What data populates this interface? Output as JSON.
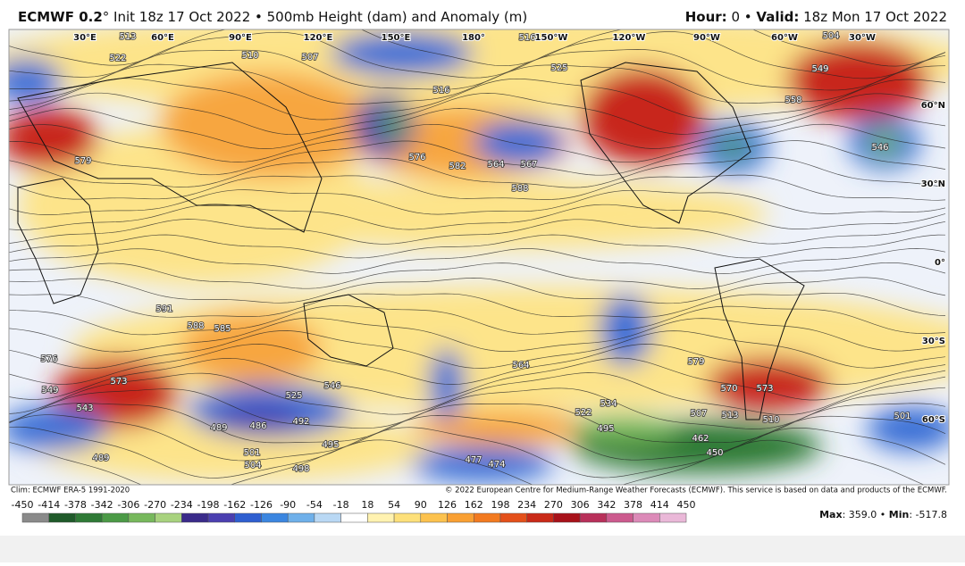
{
  "header": {
    "model": "ECMWF 0.2",
    "title": "° Init 18z 17 Oct 2022 • 500mb Height (dam) and Anomaly (m)",
    "hour_label": "Hour:",
    "hour_value": "0 •",
    "valid_label": "Valid:",
    "valid_value": "18z Mon 17 Oct 2022"
  },
  "map": {
    "longitudes": [
      "30°E",
      "60°E",
      "90°E",
      "120°E",
      "150°E",
      "180°",
      "150°W",
      "120°W",
      "90°W",
      "60°W",
      "30°W"
    ],
    "latitudes": [
      "60°N",
      "30°N",
      "0°",
      "30°S",
      "60°S"
    ],
    "contour_labels": [
      "513",
      "522",
      "510",
      "507",
      "516",
      "525",
      "516",
      "504",
      "549",
      "558",
      "546",
      "579",
      "576",
      "582",
      "564",
      "567",
      "588",
      "591",
      "588",
      "585",
      "576",
      "549",
      "573",
      "543",
      "564",
      "579",
      "570",
      "573",
      "507",
      "513",
      "510",
      "522",
      "534",
      "495",
      "489",
      "486",
      "492",
      "495",
      "501",
      "504",
      "498",
      "489",
      "477",
      "474",
      "462",
      "450",
      "501",
      "525",
      "546"
    ]
  },
  "footer": {
    "climo": "Clim: ECMWF ERA-5 1991-2020",
    "copyright": "© 2022 European Centre for Medium-Range Weather Forecasts (ECMWF). This service is based on data and products of the ECMWF."
  },
  "colorbar": {
    "ticks": [
      "-450",
      "-414",
      "-378",
      "-342",
      "-306",
      "-270",
      "-234",
      "-198",
      "-162",
      "-126",
      "-90",
      "-54",
      "-18",
      "18",
      "54",
      "90",
      "126",
      "162",
      "198",
      "234",
      "270",
      "306",
      "342",
      "378",
      "414",
      "450"
    ],
    "colors": [
      "#8a8a8a",
      "#1f5a2a",
      "#2f7a36",
      "#4b9a46",
      "#77b85c",
      "#a8d27e",
      "#3a2b8a",
      "#4b3fb0",
      "#2f5fd0",
      "#3b86e0",
      "#6fb0ea",
      "#b9d8f4",
      "#ffffff",
      "#fff2b0",
      "#fde07a",
      "#fcc24e",
      "#f9a033",
      "#f27a20",
      "#e4501a",
      "#c92a18",
      "#a8121a",
      "#b8305a",
      "#cc5a8e",
      "#dc8ab8",
      "#eab8d8"
    ]
  },
  "stats": {
    "max_label": "Max",
    "max_value": ": 359.0 •",
    "min_label": "Min",
    "min_value": ": -517.8"
  }
}
